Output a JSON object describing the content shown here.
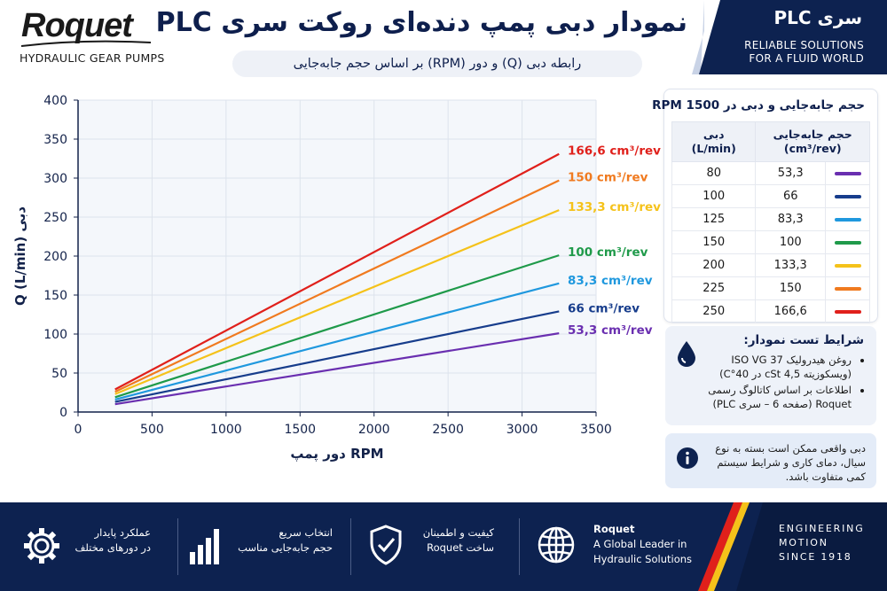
{
  "header": {
    "logo_word": "Roquet",
    "logo_sub": "HYDRAULIC GEAR PUMPS",
    "title": "نمودار دبی پمپ دنده‌ای روکت سری PLC",
    "subtitle": "رابطه دبی (Q) و دور (RPM) بر اساس حجم جابه‌جایی",
    "series_name": "سری PLC",
    "tagline_1": "RELIABLE SOLUTIONS",
    "tagline_2": "FOR A FLUID WORLD"
  },
  "chart_data": {
    "type": "line",
    "xlabel": "دور پمپ RPM",
    "ylabel": "Q (L/min) دبی",
    "xlim": [
      0,
      3500
    ],
    "ylim": [
      0,
      400
    ],
    "xticks": [
      0,
      500,
      1000,
      1500,
      2000,
      2500,
      3000,
      3500
    ],
    "yticks": [
      0,
      50,
      100,
      150,
      200,
      250,
      300,
      350,
      400
    ],
    "grid": true,
    "x": [
      250,
      3250
    ],
    "series": [
      {
        "name": "166,6 cm³/rev",
        "color": "#e0201b",
        "values": [
          29,
          331
        ]
      },
      {
        "name": "150 cm³/rev",
        "color": "#f07a1f",
        "values": [
          26,
          297
        ]
      },
      {
        "name": "133,3 cm³/rev",
        "color": "#f5c21a",
        "values": [
          23,
          259
        ]
      },
      {
        "name": "100 cm³/rev",
        "color": "#1f9a4a",
        "values": [
          19,
          201
        ]
      },
      {
        "name": "83,3 cm³/rev",
        "color": "#1f98de",
        "values": [
          16,
          165
        ]
      },
      {
        "name": "66 cm³/rev",
        "color": "#173d8c",
        "values": [
          13,
          129
        ]
      },
      {
        "name": "53,3 cm³/rev",
        "color": "#6a2fb0",
        "values": [
          10,
          101
        ]
      }
    ]
  },
  "table": {
    "title": "حجم جابه‌جایی و دبی در 1500 RPM",
    "col_disp": "حجم جابه‌جایی",
    "col_disp_unit": "(cm³/rev)",
    "col_flow": "دبی",
    "col_flow_unit": "(L/min)",
    "rows": [
      {
        "disp": "53,3",
        "flow": "80",
        "color": "#6a2fb0"
      },
      {
        "disp": "66",
        "flow": "100",
        "color": "#173d8c"
      },
      {
        "disp": "83,3",
        "flow": "125",
        "color": "#1f98de"
      },
      {
        "disp": "100",
        "flow": "150",
        "color": "#1f9a4a"
      },
      {
        "disp": "133,3",
        "flow": "200",
        "color": "#f5c21a"
      },
      {
        "disp": "150",
        "flow": "225",
        "color": "#f07a1f"
      },
      {
        "disp": "166,6",
        "flow": "250",
        "color": "#e0201b"
      }
    ]
  },
  "conditions": {
    "title": "شرایط تست نمودار:",
    "item_1": "روغن هیدرولیک ISO VG 37 (ویسکوزیته 4,5 cSt در 40°C)",
    "item_2": "اطلاعات بر اساس کاتالوگ رسمی Roquet (صفحه 6 – سری PLC)",
    "icon": "oil-drop-icon"
  },
  "note": {
    "text": "دبی واقعی ممکن است بسته به نوع سیال، دمای کاری و شرایط سیستم کمی متفاوت باشد.",
    "icon": "info-icon"
  },
  "footer": {
    "feat_1_line1": "عملکرد پایدار",
    "feat_1_line2": "در دورهای مختلف",
    "feat_2_line1": "انتخاب سریع",
    "feat_2_line2": "حجم جابه‌جایی مناسب",
    "feat_3_line1": "کیفیت و اطمینان",
    "feat_3_line2": "ساخت Roquet",
    "feat_4_line1": "Roquet",
    "feat_4_line2": "A Global Leader in",
    "feat_4_line3": "Hydraulic Solutions",
    "eng_1": "ENGINEERING",
    "eng_2": "MOTION",
    "eng_3": "SINCE 1918"
  },
  "colors": {
    "navy": "#0d2250",
    "accent_red": "#e0201b",
    "accent_yellow": "#f5c21a"
  }
}
